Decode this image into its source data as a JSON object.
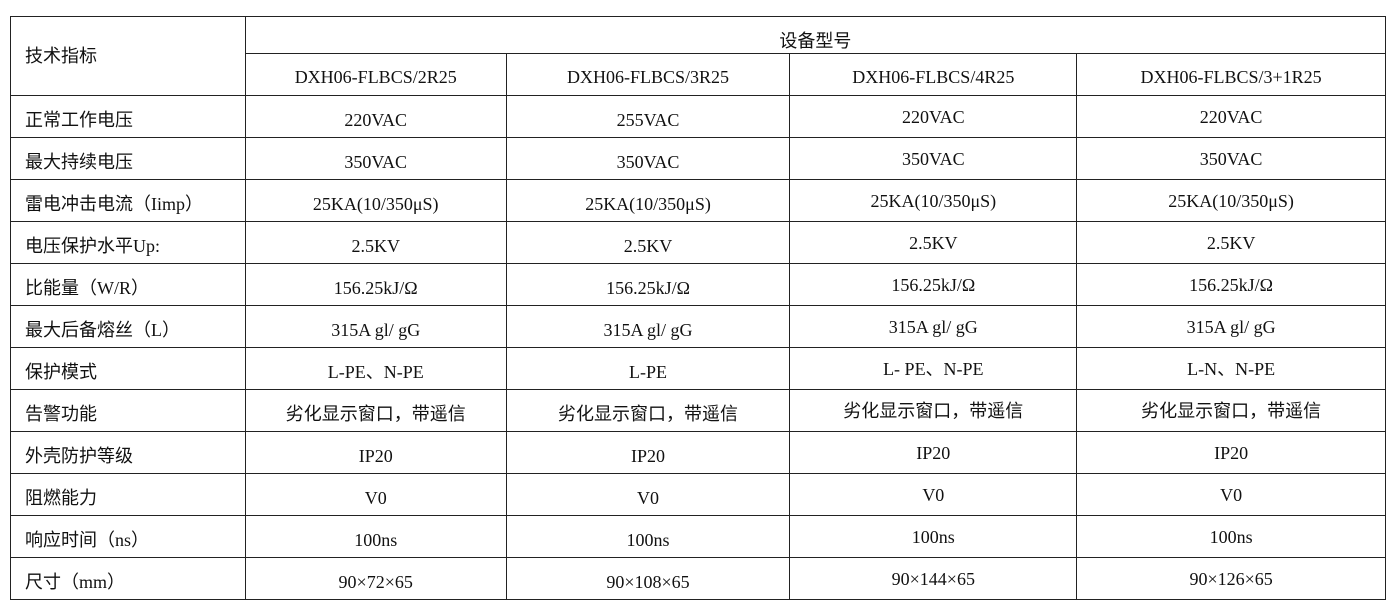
{
  "header": {
    "spec_label": "技术指标",
    "group_label": "设备型号",
    "models": [
      "DXH06-FLBCS/2R25",
      "DXH06-FLBCS/3R25",
      "DXH06-FLBCS/4R25",
      "DXH06-FLBCS/3+1R25"
    ]
  },
  "rows": [
    {
      "label": "正常工作电压",
      "values": [
        "220VAC",
        "255VAC",
        "220VAC",
        "220VAC"
      ]
    },
    {
      "label": "最大持续电压",
      "values": [
        "350VAC",
        "350VAC",
        "350VAC",
        "350VAC"
      ]
    },
    {
      "label": "雷电冲击电流（Iimp）",
      "values": [
        "25KA(10/350μS)",
        "25KA(10/350μS)",
        "25KA(10/350μS)",
        "25KA(10/350μS)"
      ]
    },
    {
      "label": "电压保护水平Up:",
      "values": [
        "2.5KV",
        "2.5KV",
        "2.5KV",
        "2.5KV"
      ]
    },
    {
      "label": "比能量（W/R）",
      "values": [
        "156.25kJ/Ω",
        "156.25kJ/Ω",
        "156.25kJ/Ω",
        "156.25kJ/Ω"
      ]
    },
    {
      "label": "最大后备熔丝（L）",
      "values": [
        "315A gl/ gG",
        "315A gl/ gG",
        "315A gl/ gG",
        "315A gl/ gG"
      ]
    },
    {
      "label": "保护模式",
      "values": [
        "L-PE、N-PE",
        "L-PE",
        "L- PE、N-PE",
        "L-N、N-PE"
      ]
    },
    {
      "label": "告警功能",
      "values": [
        "劣化显示窗口，带遥信",
        "劣化显示窗口，带遥信",
        "劣化显示窗口，带遥信",
        "劣化显示窗口，带遥信"
      ]
    },
    {
      "label": "外壳防护等级",
      "values": [
        "IP20",
        "IP20",
        "IP20",
        "IP20"
      ]
    },
    {
      "label": "阻燃能力",
      "values": [
        "V0",
        "V0",
        "V0",
        "V0"
      ]
    },
    {
      "label": "响应时间（ns）",
      "values": [
        "100ns",
        "100ns",
        "100ns",
        "100ns"
      ]
    },
    {
      "label": "尺寸（mm）",
      "values": [
        "90×72×65",
        "90×108×65",
        "90×144×65",
        "90×126×65"
      ]
    }
  ]
}
